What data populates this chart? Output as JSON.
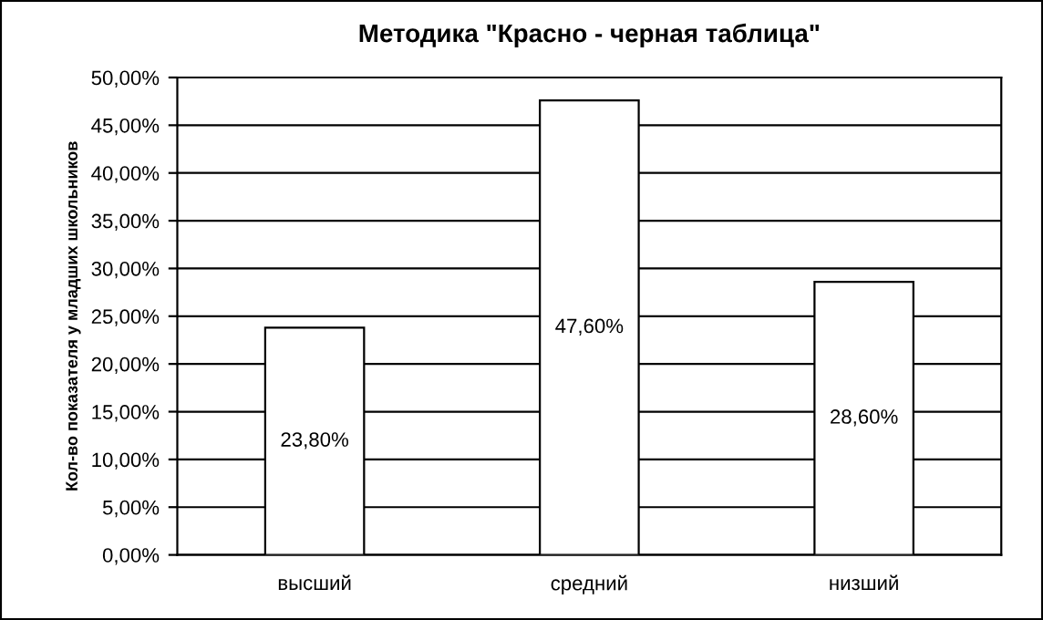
{
  "chart_data": {
    "type": "bar",
    "title": "Методика \"Красно - черная таблица\"",
    "ylabel": "Кол-во показателя у младших школьников",
    "categories": [
      "высший",
      "средний",
      "низший"
    ],
    "values": [
      23.8,
      47.6,
      28.6
    ],
    "value_labels": [
      "23,80%",
      "47,60%",
      "28,60%"
    ],
    "color": "#ffffff",
    "ylim": [
      0,
      50
    ],
    "yticks": [
      {
        "value": 0,
        "label": "0,00%"
      },
      {
        "value": 5,
        "label": "5,00%"
      },
      {
        "value": 10,
        "label": "10,00%"
      },
      {
        "value": 15,
        "label": "15,00%"
      },
      {
        "value": 20,
        "label": "20,00%"
      },
      {
        "value": 25,
        "label": "25,00%"
      },
      {
        "value": 30,
        "label": "30,00%"
      },
      {
        "value": 35,
        "label": "35,00%"
      },
      {
        "value": 40,
        "label": "40,00%"
      },
      {
        "value": 45,
        "label": "45,00%"
      },
      {
        "value": 50,
        "label": "50,00%"
      }
    ],
    "grid": "y"
  }
}
